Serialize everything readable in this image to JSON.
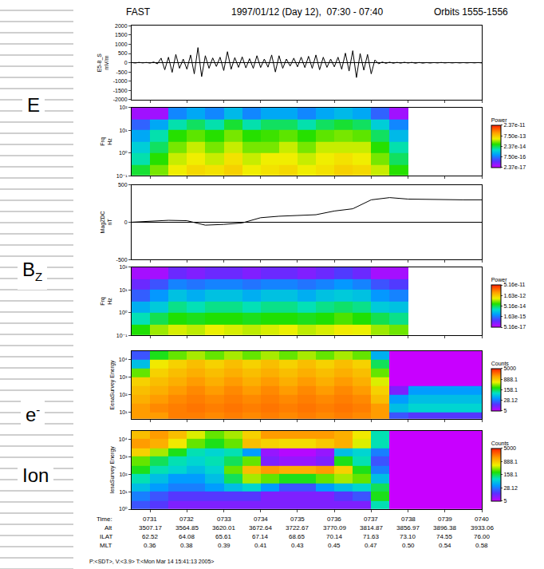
{
  "header": {
    "left": "FAST",
    "center": "1997/01/12 (Day 12),  07:30 - 07:40",
    "right": "Orbits 1555-1556"
  },
  "side_labels": [
    {
      "text": "E"
    },
    {
      "text": "B",
      "sub": "Z"
    },
    {
      "text": "e",
      "sup": "-"
    },
    {
      "text": "Ion"
    }
  ],
  "time_axis": {
    "xlim": [
      0.5,
      10
    ],
    "xticks": [
      1,
      2,
      3,
      4,
      5,
      6,
      7,
      8,
      9,
      10
    ],
    "rows": [
      {
        "label": "Time:",
        "values": [
          "0731",
          "0732",
          "0733",
          "0734",
          "0735",
          "0736",
          "0737",
          "0738",
          "0739",
          "0740"
        ]
      },
      {
        "label": "Alt",
        "values": [
          "3507.17",
          "3564.85",
          "3620.01",
          "3672.64",
          "3722.67",
          "3770.09",
          "3814.87",
          "3856.97",
          "3896.38",
          "3933.06"
        ]
      },
      {
        "label": "ILAT",
        "values": [
          "62.52",
          "64.08",
          "65.61",
          "67.14",
          "68.65",
          "70.14",
          "71.63",
          "73.10",
          "74.55",
          "76.00"
        ]
      },
      {
        "label": "MLT",
        "values": [
          "0.36",
          "0.38",
          "0.39",
          "0.41",
          "0.43",
          "0.45",
          "0.47",
          "0.50",
          "0.54",
          "0.58"
        ]
      }
    ]
  },
  "chart_data": [
    {
      "type": "line",
      "y_title": [
        "E5-8_S",
        "mV/m"
      ],
      "color": "#000000",
      "grid": false,
      "x": [
        0.5,
        0.6,
        0.7,
        0.8,
        0.9,
        1.0,
        1.1,
        1.2,
        1.3,
        1.4,
        1.5,
        1.6,
        1.7,
        1.8,
        1.9,
        2.0,
        2.1,
        2.2,
        2.3,
        2.4,
        2.5,
        2.6,
        2.7,
        2.8,
        2.9,
        3.0,
        3.1,
        3.2,
        3.3,
        3.4,
        3.5,
        3.6,
        3.7,
        3.8,
        3.9,
        4.0,
        4.1,
        4.2,
        4.3,
        4.4,
        4.5,
        4.6,
        4.7,
        4.8,
        4.9,
        5.0,
        5.1,
        5.2,
        5.3,
        5.4,
        5.5,
        5.6,
        5.7,
        5.8,
        5.9,
        6.0,
        6.1,
        6.2,
        6.3,
        6.4,
        6.5,
        6.6,
        6.7,
        6.8,
        6.9,
        7.0,
        7.1,
        7.2,
        7.3,
        7.4,
        7.5,
        7.6,
        7.7,
        7.8,
        7.9,
        8.0,
        8.1,
        8.2,
        8.3,
        8.4,
        8.5,
        8.6,
        8.7,
        8.8,
        8.9,
        9.0,
        9.1,
        9.2,
        9.3,
        9.4,
        9.5,
        9.6,
        9.7,
        9.8,
        9.9,
        10.0
      ],
      "values": [
        10,
        -15,
        20,
        -10,
        15,
        -20,
        40,
        -60,
        250,
        -380,
        300,
        -520,
        450,
        -300,
        200,
        -350,
        420,
        -600,
        820,
        -750,
        380,
        -300,
        260,
        -200,
        300,
        -420,
        600,
        -350,
        280,
        -250,
        320,
        -280,
        220,
        -300,
        380,
        -260,
        200,
        -240,
        420,
        -500,
        380,
        -300,
        200,
        -180,
        250,
        -220,
        300,
        -260,
        350,
        -300,
        420,
        -380,
        300,
        -250,
        200,
        -220,
        300,
        -350,
        520,
        -450,
        650,
        -800,
        500,
        -400,
        450,
        -600,
        150,
        -60,
        40,
        -30,
        30,
        -25,
        20,
        -20,
        25,
        -15,
        20,
        -25,
        15,
        -20,
        10,
        -15,
        10,
        -10,
        15,
        -10,
        10,
        -10,
        10,
        -10,
        8,
        -10,
        10,
        -8,
        10,
        -10
      ],
      "ylim": [
        -2000,
        2000
      ],
      "yticks": [
        -2000,
        -1500,
        -1000,
        -500,
        0,
        500,
        1000,
        1500,
        2000
      ]
    },
    {
      "type": "heatmap",
      "y_title": [
        "Frq",
        "Hz"
      ],
      "log": true,
      "x": [
        0.75,
        1.25,
        1.75,
        2.25,
        2.75,
        3.25,
        3.75,
        4.25,
        4.75,
        5.25,
        5.75,
        6.25,
        6.75,
        7.25,
        7.75
      ],
      "y_edges": [
        0.1,
        0.3,
        1,
        3,
        10,
        30,
        100
      ],
      "z": [
        [
          3e-14,
          1e-13,
          3e-13,
          5e-13,
          4e-13,
          6e-13,
          3e-13,
          4e-13,
          5e-13,
          3e-13,
          4e-13,
          6e-13,
          5e-13,
          2e-13,
          5e-14
        ],
        [
          1e-14,
          5e-14,
          2e-13,
          3e-13,
          2e-13,
          4e-13,
          2e-13,
          3e-13,
          3e-13,
          2e-13,
          3e-13,
          4e-13,
          3e-13,
          1e-13,
          2e-14
        ],
        [
          5e-15,
          2e-14,
          1e-13,
          2e-13,
          1e-13,
          2e-13,
          1e-13,
          1e-13,
          2e-13,
          1e-13,
          2e-13,
          2e-13,
          2e-13,
          5e-14,
          1e-14
        ],
        [
          2e-15,
          1e-14,
          5e-14,
          8e-14,
          5e-14,
          1e-13,
          5e-14,
          6e-14,
          8e-14,
          5e-14,
          8e-14,
          1e-13,
          8e-14,
          2e-14,
          3e-15
        ],
        [
          5e-16,
          2e-15,
          1e-14,
          2e-14,
          1e-14,
          3e-14,
          1e-14,
          2e-14,
          2e-14,
          1e-14,
          2e-14,
          3e-14,
          2e-14,
          5e-15,
          1e-15
        ],
        [
          5e-17,
          5e-17,
          1e-15,
          2e-15,
          1e-15,
          3e-15,
          1e-15,
          2e-15,
          2e-15,
          1e-15,
          2e-15,
          3e-15,
          2e-15,
          5e-16,
          5e-17
        ]
      ],
      "ylim": [
        0.1,
        100
      ],
      "yticks": [
        {
          "value": 0.1,
          "label": "10⁻¹"
        },
        {
          "value": 1,
          "label": "10⁰"
        },
        {
          "value": 10,
          "label": "10¹"
        },
        {
          "value": 100,
          "label": "10²"
        }
      ],
      "colorbar_title": "Power",
      "zlim": [
        2.37e-17,
        2.37e-11
      ],
      "zticks": [
        {
          "value": 2.37e-17,
          "label": "2.37e-17"
        },
        {
          "value": 7.5e-16,
          "label": "7.50e-16"
        },
        {
          "value": 2.37e-14,
          "label": "2.37e-14"
        },
        {
          "value": 7.5e-13,
          "label": "7.50e-13"
        },
        {
          "value": 2.37e-11,
          "label": "2.37e-11"
        }
      ]
    },
    {
      "type": "line",
      "y_title": [
        "MagZDC",
        "nT"
      ],
      "color": "#000000",
      "grid": false,
      "x": [
        0.5,
        1.0,
        1.5,
        2.0,
        2.5,
        3.0,
        3.5,
        4.0,
        4.5,
        5.0,
        5.5,
        6.0,
        6.5,
        7.0,
        7.5,
        8.0,
        8.5,
        9.0,
        9.5,
        10.0
      ],
      "values": [
        0,
        10,
        25,
        20,
        -40,
        -30,
        -10,
        60,
        80,
        90,
        100,
        150,
        180,
        300,
        330,
        310,
        305,
        300,
        300,
        300
      ],
      "ylim": [
        -500,
        500
      ],
      "yticks": [
        -500,
        0,
        500
      ]
    },
    {
      "type": "heatmap",
      "y_title": [
        "Frq",
        "Hz"
      ],
      "log": true,
      "x": [
        0.75,
        1.25,
        1.75,
        2.25,
        2.75,
        3.25,
        3.75,
        4.25,
        4.75,
        5.25,
        5.75,
        6.25,
        6.75,
        7.25,
        7.75
      ],
      "y_edges": [
        0.1,
        0.3,
        1,
        3,
        10,
        30,
        100
      ],
      "z": [
        [
          1e-13,
          3e-13,
          5e-13,
          4e-13,
          6e-13,
          5e-13,
          4e-13,
          5e-13,
          6e-13,
          4e-13,
          5e-13,
          7e-13,
          6e-13,
          3e-13,
          2e-13
        ],
        [
          2e-14,
          5e-14,
          1e-13,
          8e-14,
          1e-13,
          1e-13,
          8e-14,
          1e-13,
          1e-13,
          8e-14,
          1e-13,
          1.5e-13,
          1e-13,
          5e-14,
          3e-14
        ],
        [
          5e-15,
          1e-14,
          3e-14,
          2e-14,
          3e-14,
          3e-14,
          2e-14,
          3e-14,
          3e-14,
          2e-14,
          3e-14,
          4e-14,
          3e-14,
          1e-14,
          8e-15
        ],
        [
          1e-15,
          3e-15,
          8e-15,
          5e-15,
          8e-15,
          8e-15,
          5e-15,
          8e-15,
          8e-15,
          5e-15,
          8e-15,
          1e-14,
          8e-15,
          3e-15,
          2e-15
        ],
        [
          3e-16,
          8e-16,
          2e-15,
          1.5e-15,
          2e-15,
          2e-15,
          1.5e-15,
          2e-15,
          2e-15,
          1.5e-15,
          2e-15,
          3e-15,
          2e-15,
          8e-16,
          5e-16
        ],
        [
          1e-16,
          1e-16,
          3e-16,
          2e-16,
          3e-16,
          3e-16,
          2e-16,
          3e-16,
          3e-16,
          2e-16,
          3e-16,
          5e-16,
          3e-16,
          1e-16,
          1e-16
        ]
      ],
      "ylim": [
        0.1,
        100
      ],
      "yticks": [
        {
          "value": 0.1,
          "label": "10⁻¹"
        },
        {
          "value": 1,
          "label": "10⁰"
        },
        {
          "value": 10,
          "label": "10¹"
        },
        {
          "value": 100,
          "label": "10²"
        }
      ],
      "colorbar_title": "Power",
      "zlim": [
        5.16e-17,
        5.16e-11
      ],
      "zticks": [
        {
          "value": 5.16e-17,
          "label": "5.16e-17"
        },
        {
          "value": 1.63e-15,
          "label": "1.63e-15"
        },
        {
          "value": 5.16e-14,
          "label": "5.16e-14"
        },
        {
          "value": 1.63e-12,
          "label": "1.63e-12"
        },
        {
          "value": 5.16e-11,
          "label": "5.16e-11"
        }
      ]
    },
    {
      "type": "heatmap",
      "y_title": [
        "EesaSurvey Energy"
      ],
      "log": true,
      "x": [
        0.75,
        1.25,
        1.75,
        2.25,
        2.75,
        3.25,
        3.75,
        4.25,
        4.75,
        5.25,
        5.75,
        6.25,
        6.75,
        7.25,
        7.75,
        8.25,
        8.75,
        9.25,
        9.75
      ],
      "y_edges": [
        4,
        10,
        30,
        100,
        300,
        1000,
        3000,
        10000,
        30000
      ],
      "z": [
        [
          1500,
          1500,
          2000,
          2000,
          1800,
          2000,
          1800,
          2000,
          1800,
          2000,
          1800,
          2000,
          1800,
          1500,
          20,
          15,
          15,
          15,
          15
        ],
        [
          1500,
          1800,
          2000,
          2200,
          2000,
          2200,
          2000,
          2200,
          2000,
          2200,
          2000,
          2200,
          2000,
          1500,
          60,
          80,
          80,
          80,
          80
        ],
        [
          1200,
          1500,
          1800,
          2000,
          1800,
          2000,
          1800,
          2000,
          1800,
          2000,
          1800,
          2000,
          1800,
          1000,
          40,
          60,
          60,
          60,
          60
        ],
        [
          1000,
          1200,
          1500,
          1800,
          1500,
          1800,
          1500,
          1800,
          1500,
          1800,
          1500,
          1800,
          1500,
          800,
          10,
          40,
          40,
          40,
          40
        ],
        [
          800,
          1000,
          1200,
          1500,
          1200,
          1500,
          1200,
          1500,
          1200,
          1500,
          1200,
          1500,
          1200,
          500,
          5,
          5,
          5,
          5,
          5
        ],
        [
          300,
          800,
          1000,
          1200,
          1000,
          1200,
          1000,
          1200,
          1000,
          1200,
          1000,
          1200,
          1000,
          300,
          5,
          5,
          5,
          5,
          5
        ],
        [
          60,
          600,
          800,
          1000,
          800,
          1000,
          800,
          1000,
          800,
          1000,
          800,
          1000,
          800,
          150,
          5,
          5,
          5,
          5,
          5
        ],
        [
          20,
          200,
          300,
          400,
          300,
          400,
          300,
          400,
          300,
          400,
          300,
          400,
          300,
          50,
          5,
          5,
          5,
          5,
          5
        ]
      ],
      "ylim": [
        4,
        30000
      ],
      "yticks": [
        {
          "value": 10,
          "label": "10¹"
        },
        {
          "value": 100,
          "label": "10²"
        },
        {
          "value": 1000,
          "label": "10³"
        },
        {
          "value": 10000,
          "label": "10⁴"
        }
      ],
      "colorbar_title": "Counts",
      "zlim": [
        5,
        5000
      ],
      "zticks": [
        5,
        28.12,
        158.1,
        888.1,
        5000
      ]
    },
    {
      "type": "heatmap",
      "y_title": [
        "IesaSurvey Energy"
      ],
      "log": true,
      "x": [
        0.75,
        1.25,
        1.75,
        2.25,
        2.75,
        3.25,
        3.75,
        4.25,
        4.75,
        5.25,
        5.75,
        6.25,
        6.75,
        7.25,
        7.75,
        8.25,
        8.75,
        9.25,
        9.75
      ],
      "y_edges": [
        1,
        3,
        10,
        30,
        100,
        300,
        1000,
        3000,
        10000,
        30000
      ],
      "z": [
        [
          20,
          15,
          10,
          10,
          10,
          10,
          10,
          10,
          10,
          10,
          10,
          10,
          10,
          100,
          5,
          5,
          5,
          5,
          5
        ],
        [
          30,
          20,
          15,
          15,
          15,
          15,
          15,
          10,
          10,
          10,
          10,
          15,
          20,
          200,
          5,
          5,
          5,
          5,
          5
        ],
        [
          60,
          40,
          30,
          30,
          40,
          60,
          80,
          40,
          20,
          20,
          40,
          60,
          80,
          150,
          5,
          5,
          5,
          5,
          5
        ],
        [
          100,
          60,
          40,
          40,
          60,
          150,
          400,
          300,
          200,
          200,
          300,
          400,
          300,
          60,
          5,
          5,
          5,
          5,
          5
        ],
        [
          200,
          100,
          80,
          60,
          80,
          300,
          1000,
          1500,
          1200,
          1200,
          1500,
          800,
          200,
          30,
          5,
          5,
          5,
          5,
          5
        ],
        [
          300,
          150,
          100,
          80,
          100,
          150,
          300,
          10,
          8,
          8,
          10,
          200,
          100,
          20,
          5,
          5,
          5,
          5,
          5
        ],
        [
          800,
          400,
          200,
          100,
          80,
          100,
          40,
          8,
          6,
          6,
          8,
          60,
          80,
          30,
          5,
          5,
          5,
          5,
          5
        ],
        [
          1500,
          1200,
          600,
          300,
          200,
          300,
          1000,
          800,
          700,
          700,
          900,
          1200,
          500,
          100,
          5,
          5,
          5,
          5,
          5
        ],
        [
          1000,
          1500,
          1000,
          500,
          300,
          400,
          800,
          1500,
          1500,
          1500,
          1500,
          1200,
          600,
          100,
          5,
          5,
          5,
          5,
          5
        ]
      ],
      "ylim": [
        1,
        30000
      ],
      "yticks": [
        {
          "value": 1,
          "label": "10⁰"
        },
        {
          "value": 10,
          "label": "10¹"
        },
        {
          "value": 100,
          "label": "10²"
        },
        {
          "value": 1000,
          "label": "10³"
        },
        {
          "value": 10000,
          "label": "10⁴"
        }
      ],
      "colorbar_title": "Counts",
      "zlim": [
        5,
        5000
      ],
      "zticks": [
        5,
        28.12,
        158.1,
        888.1,
        5000
      ]
    }
  ],
  "footer": "P:<SDT>, V:<3.9> T:<Mon Mar 14 15:41:13 2005>"
}
